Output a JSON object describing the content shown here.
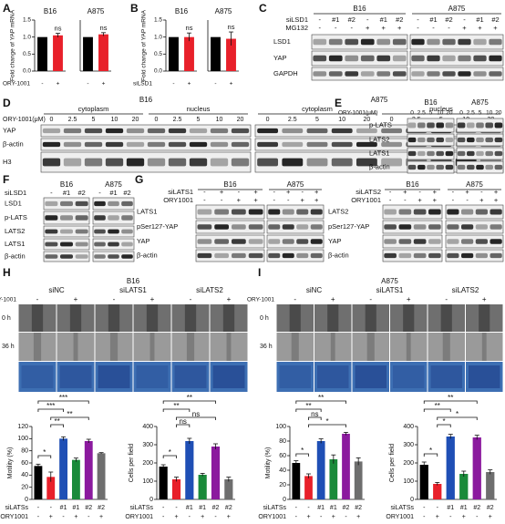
{
  "labels": [
    "A",
    "B",
    "C",
    "D",
    "E",
    "F",
    "G",
    "H",
    "I"
  ],
  "C": {
    "cells": [
      "B16",
      "A875"
    ],
    "rows": [
      {
        "name": "siLSD1",
        "values": [
          "-",
          "#1",
          "#2",
          "-",
          "#1",
          "#2"
        ]
      },
      {
        "name": "MG132",
        "values": [
          "-",
          "-",
          "-",
          "+",
          "+",
          "+"
        ]
      }
    ],
    "proteins": [
      "LSD1",
      "YAP",
      "GAPDH"
    ]
  },
  "D": {
    "cells": [
      "B16",
      "A875"
    ],
    "name": "ORY-1001(μM)",
    "fractions": [
      "cytoplasm",
      "nucleus"
    ],
    "doses": [
      "0",
      "2.5",
      "5",
      "10",
      "20"
    ],
    "proteins": [
      "YAP",
      "β-actin",
      "H3"
    ]
  },
  "E": {
    "cells": [
      "B16",
      "A875"
    ],
    "name": "ORY-1001(μM)",
    "doses": [
      "0",
      "2.5",
      "5",
      "10",
      "20"
    ],
    "proteins": [
      "p-LATS",
      "LATS2",
      "LATS1",
      "β-actin"
    ]
  },
  "F": {
    "cells": [
      "B16",
      "A875"
    ],
    "name": "siLSD1",
    "values": [
      "-",
      "#1",
      "#2"
    ],
    "proteins": [
      "LSD1",
      "p-LATS",
      "LATS2",
      "LATS1",
      "β-actin"
    ]
  },
  "G": [
    {
      "cells": [
        "B16",
        "A875"
      ],
      "rows": [
        {
          "name": "siLATS1",
          "values": [
            "-",
            "+",
            "-",
            "+"
          ]
        },
        {
          "name": "ORY1001",
          "values": [
            "-",
            "-",
            "+",
            "+"
          ]
        }
      ],
      "proteins": [
        "LATS1",
        "pSer127-YAP",
        "YAP",
        "β-actin"
      ]
    },
    {
      "cells": [
        "B16",
        "A875"
      ],
      "rows": [
        {
          "name": "siLATS2",
          "values": [
            "-",
            "+",
            "-",
            "+"
          ]
        },
        {
          "name": "ORY1001",
          "values": [
            "-",
            "-",
            "+",
            "+"
          ]
        }
      ],
      "proteins": [
        "LATS2",
        "pSer127-YAP",
        "YAP",
        "β-actin"
      ]
    }
  ],
  "H": {
    "cell": "B16",
    "groups": [
      "siNC",
      "siLATS1",
      "siLATS2"
    ],
    "name": "ORY-1001",
    "treat": [
      "-",
      "+"
    ],
    "times": [
      "0 h",
      "36 h"
    ]
  },
  "I": {
    "cell": "A875",
    "groups": [
      "siNC",
      "siLATS1",
      "siLATS2"
    ],
    "name": "ORY-1001",
    "treat": [
      "-",
      "+"
    ],
    "times": [
      "0 h",
      "36 h"
    ]
  },
  "chart_data": [
    {
      "type": "bar",
      "title": "B16",
      "ylabel": "Fold change of YAP mRNA",
      "xlabel": "ORY-1001",
      "categories": [
        "-",
        "+"
      ],
      "values": [
        1.0,
        1.05
      ],
      "errors": [
        0,
        0.06
      ],
      "colors": [
        "#000000",
        "#e8202a"
      ],
      "ylim": [
        0,
        1.5
      ],
      "yticks": [
        {
          "value": 0,
          "label": "0.0"
        },
        {
          "value": 0.5,
          "label": "0.5"
        },
        {
          "value": 1,
          "label": "1.0"
        },
        {
          "value": 1.5,
          "label": "1.5"
        }
      ],
      "annotations": [
        "ns"
      ]
    },
    {
      "type": "bar",
      "title": "A875",
      "categories": [
        "-",
        "+"
      ],
      "values": [
        1.0,
        1.08
      ],
      "errors": [
        0,
        0.05
      ],
      "colors": [
        "#000000",
        "#e8202a"
      ],
      "ylim": [
        0,
        1.5
      ],
      "annotations": [
        "ns"
      ]
    },
    {
      "type": "bar",
      "title": "B16",
      "ylabel": "Fold change of YAP mRNA",
      "xlabel": "siLSD1",
      "categories": [
        "-",
        "+"
      ],
      "values": [
        1.0,
        1.0
      ],
      "errors": [
        0,
        0.12
      ],
      "colors": [
        "#000000",
        "#e8202a"
      ],
      "ylim": [
        0,
        1.5
      ],
      "yticks": [
        {
          "value": 0,
          "label": "0.0"
        },
        {
          "value": 0.5,
          "label": "0.5"
        },
        {
          "value": 1,
          "label": "1.0"
        },
        {
          "value": 1.5,
          "label": "1.5"
        }
      ],
      "annotations": [
        "ns"
      ]
    },
    {
      "type": "bar",
      "title": "A875",
      "categories": [
        "-",
        "+"
      ],
      "values": [
        1.0,
        0.95
      ],
      "errors": [
        0,
        0.2
      ],
      "colors": [
        "#000000",
        "#e8202a"
      ],
      "ylim": [
        0,
        1.5
      ],
      "annotations": [
        "ns"
      ]
    },
    {
      "type": "bar",
      "ylabel": "Motility (%)",
      "xlabel": "siLATSs",
      "categories": [
        "-",
        "-",
        "#1",
        "#1",
        "#2",
        "#2"
      ],
      "xlabel2": "ORY1001",
      "categories2": [
        "-",
        "+",
        "-",
        "+",
        "-",
        "+"
      ],
      "values": [
        55,
        37,
        100,
        65,
        96,
        76
      ],
      "errors": [
        3,
        8,
        3,
        3,
        3,
        1
      ],
      "colors": [
        "#000000",
        "#e8202a",
        "#1f4fb5",
        "#1a8a3a",
        "#8b1a9e",
        "#6e6e6e"
      ],
      "ylim": [
        0,
        120
      ],
      "yticks": [
        0,
        20,
        40,
        60,
        80,
        100,
        120
      ],
      "annotations": [
        "***",
        "***",
        "**",
        "**",
        "*"
      ]
    },
    {
      "type": "bar",
      "ylabel": "Cells per field",
      "xlabel": "siLATSs",
      "categories": [
        "-",
        "-",
        "#1",
        "#1",
        "#2",
        "#2"
      ],
      "xlabel2": "ORY1001",
      "categories2": [
        "-",
        "+",
        "-",
        "+",
        "-",
        "+"
      ],
      "values": [
        180,
        110,
        320,
        135,
        290,
        110
      ],
      "errors": [
        10,
        12,
        15,
        8,
        15,
        12
      ],
      "colors": [
        "#000000",
        "#e8202a",
        "#1f4fb5",
        "#1a8a3a",
        "#8b1a9e",
        "#6e6e6e"
      ],
      "ylim": [
        0,
        400
      ],
      "yticks": [
        0,
        100,
        200,
        300,
        400
      ],
      "annotations": [
        "**",
        "**",
        "ns",
        "ns",
        "*"
      ]
    },
    {
      "type": "bar",
      "ylabel": "Motility (%)",
      "xlabel": "siLATSs",
      "categories": [
        "-",
        "-",
        "#1",
        "#1",
        "#2",
        "#2"
      ],
      "xlabel2": "ORY1001",
      "categories2": [
        "-",
        "+",
        "-",
        "+",
        "-",
        "+"
      ],
      "values": [
        50,
        32,
        80,
        55,
        90,
        52
      ],
      "errors": [
        3,
        3,
        3,
        6,
        2,
        5
      ],
      "colors": [
        "#000000",
        "#e8202a",
        "#1f4fb5",
        "#1a8a3a",
        "#8b1a9e",
        "#6e6e6e"
      ],
      "ylim": [
        0,
        100
      ],
      "yticks": [
        0,
        20,
        40,
        60,
        80,
        100
      ],
      "annotations": [
        "**",
        "**",
        "ns",
        "*",
        "*"
      ]
    },
    {
      "type": "bar",
      "ylabel": "Cells per field",
      "xlabel": "siLATSs",
      "categories": [
        "-",
        "-",
        "#1",
        "#1",
        "#2",
        "#2"
      ],
      "xlabel2": "ORY1001",
      "categories2": [
        "-",
        "+",
        "-",
        "+",
        "-",
        "+"
      ],
      "values": [
        190,
        85,
        345,
        140,
        340,
        150
      ],
      "errors": [
        15,
        8,
        12,
        15,
        12,
        12
      ],
      "colors": [
        "#000000",
        "#e8202a",
        "#1f4fb5",
        "#1a8a3a",
        "#8b1a9e",
        "#6e6e6e"
      ],
      "ylim": [
        0,
        400
      ],
      "yticks": [
        0,
        100,
        200,
        300,
        400
      ],
      "annotations": [
        "**",
        "**",
        "*",
        "*",
        "*"
      ]
    }
  ]
}
